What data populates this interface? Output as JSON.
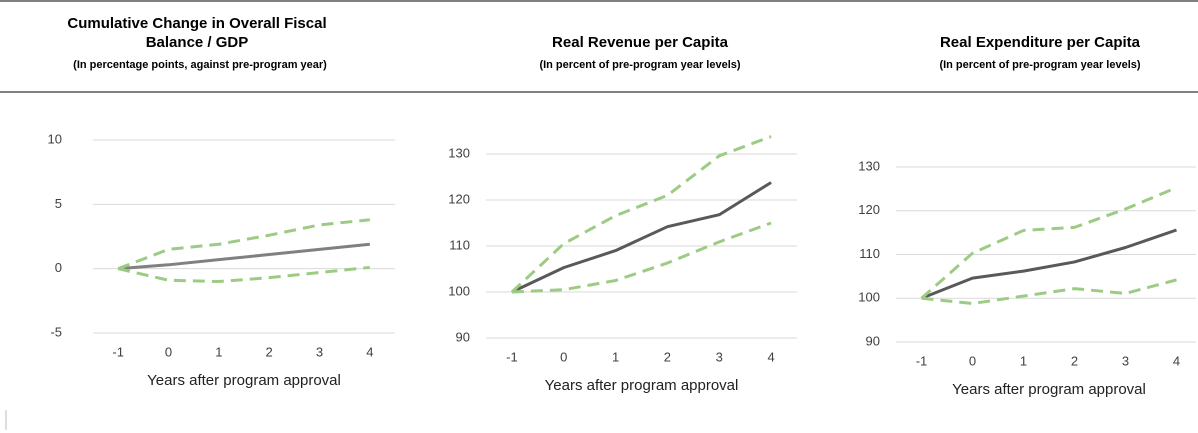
{
  "chart_data": [
    {
      "type": "line",
      "title": "Cumulative Change in Overall Fiscal Balance / GDP",
      "subtitle": "(In percentage points, against pre-program year)",
      "xlabel": "Years after program approval",
      "x": [
        -1,
        0,
        1,
        2,
        3,
        4
      ],
      "xlim": [
        -1.5,
        4.5
      ],
      "xticks": [
        -1,
        0,
        1,
        2,
        3,
        4
      ],
      "ylim": [
        -5,
        10
      ],
      "yticks": [
        -5,
        0,
        5,
        10
      ],
      "grid": true,
      "series": [
        {
          "color": "#808080",
          "dash": false,
          "values": [
            0,
            0.3,
            0.7,
            1.1,
            1.5,
            1.9
          ]
        },
        {
          "color": "#9ccc84",
          "dash": true,
          "values": [
            0,
            1.5,
            1.9,
            2.6,
            3.4,
            3.8
          ]
        },
        {
          "color": "#9ccc84",
          "dash": true,
          "values": [
            0,
            -0.9,
            -1.0,
            -0.7,
            -0.3,
            0.1
          ]
        }
      ]
    },
    {
      "type": "line",
      "title": "Real Revenue per Capita",
      "subtitle": "(In percent of pre-program year levels)",
      "xlabel": "Years after program approval",
      "x": [
        -1,
        0,
        1,
        2,
        3,
        4
      ],
      "xlim": [
        -1.5,
        4.5
      ],
      "xticks": [
        -1,
        0,
        1,
        2,
        3,
        4
      ],
      "ylim": [
        90,
        130
      ],
      "yticks": [
        90,
        100,
        110,
        120,
        130
      ],
      "grid": true,
      "series": [
        {
          "color": "#595959",
          "dash": false,
          "values": [
            100,
            105.3,
            109,
            114.2,
            116.8,
            123.8
          ]
        },
        {
          "color": "#9ccc84",
          "dash": true,
          "values": [
            100,
            110.5,
            116.6,
            121,
            129.6,
            133.8
          ]
        },
        {
          "color": "#9ccc84",
          "dash": true,
          "values": [
            100,
            100.5,
            102.5,
            106.3,
            110.9,
            115
          ]
        }
      ]
    },
    {
      "type": "line",
      "title": "Real Expenditure per Capita",
      "subtitle": "(In percent of pre-program year levels)",
      "xlabel": "Years after program approval",
      "x": [
        -1,
        0,
        1,
        2,
        3,
        4
      ],
      "xlim": [
        -1.5,
        4.5
      ],
      "xticks": [
        -1,
        0,
        1,
        2,
        3,
        4
      ],
      "ylim": [
        90,
        130
      ],
      "yticks": [
        90,
        100,
        110,
        120,
        130
      ],
      "grid": true,
      "series": [
        {
          "color": "#595959",
          "dash": false,
          "values": [
            100,
            104.6,
            106.2,
            108.3,
            111.6,
            115.6
          ]
        },
        {
          "color": "#9ccc84",
          "dash": true,
          "values": [
            100,
            110.3,
            115.5,
            116.2,
            120.4,
            125.3
          ]
        },
        {
          "color": "#9ccc84",
          "dash": true,
          "values": [
            100,
            98.8,
            100.5,
            102.2,
            101.1,
            104.2
          ]
        }
      ]
    }
  ]
}
